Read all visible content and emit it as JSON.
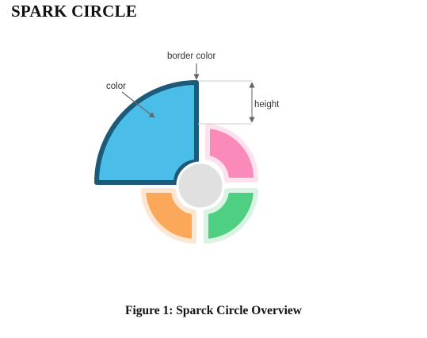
{
  "header": {
    "title": "SPARK CIRCLE"
  },
  "diagram": {
    "labels": {
      "border_color": "border color",
      "color": "color",
      "height": "height"
    },
    "segments": [
      {
        "name": "blue",
        "fill": "#4bbde9",
        "border": "#1c5a78"
      },
      {
        "name": "pink",
        "fill": "#f98ab9",
        "border": "#fde1ee"
      },
      {
        "name": "orange",
        "fill": "#fca85a",
        "border": "#fde6d2"
      },
      {
        "name": "green",
        "fill": "#4fcf81",
        "border": "#d9f4e3"
      }
    ],
    "center_fill": "#e0e0e0"
  },
  "caption": "Figure 1: Sparck Circle Overview"
}
